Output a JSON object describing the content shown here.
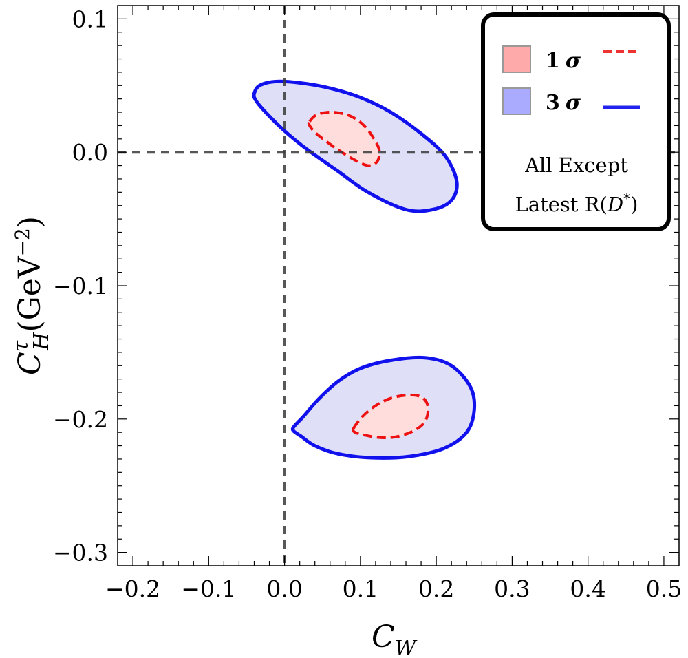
{
  "chart_data": {
    "type": "contour",
    "xlabel": "C",
    "xlabel_sub": "W",
    "ylabel": "C",
    "ylabel_sup": "τ",
    "ylabel_sub": "H",
    "ylabel_unit": "(GeV",
    "ylabel_unit_sup": "−2",
    "ylabel_unit_close": ")",
    "xlim": [
      -0.22,
      0.52
    ],
    "ylim": [
      -0.31,
      0.11
    ],
    "x_ticks": [
      -0.2,
      -0.1,
      0.0,
      0.1,
      0.2,
      0.3,
      0.4,
      0.5
    ],
    "x_tick_labels": [
      "−0.2",
      "−0.1",
      "0.0",
      "0.1",
      "0.2",
      "0.3",
      "0.4",
      "0.5"
    ],
    "y_ticks": [
      0.1,
      0.0,
      -0.1,
      -0.2,
      -0.3
    ],
    "y_tick_labels": [
      "0.1",
      "0.0",
      "−0.1",
      "−0.2",
      "−0.3"
    ],
    "reference_lines": {
      "x": 0.0,
      "y": 0.0,
      "style": "dashed"
    },
    "legend": {
      "placement": "top-right",
      "entries": [
        {
          "label": "1",
          "symbol": "σ",
          "fill": "#ffaaaa",
          "line_color": "#ee3333",
          "line_style": "dashed"
        },
        {
          "label": "3",
          "symbol": "σ",
          "fill": "#aaaaff",
          "line_color": "#2222ee",
          "line_style": "solid"
        }
      ],
      "note_line1": "All Except",
      "note_line2_prefix": "Latest R(",
      "note_line2_var": "D",
      "note_line2_sup": "*",
      "note_line2_suffix": ")"
    },
    "series": [
      {
        "name": "1σ",
        "stroke": "#ee1111",
        "fill": "#ffdddd",
        "dashed": true,
        "regions": [
          [
            [
              0.033,
              0.023
            ],
            [
              0.042,
              0.028
            ],
            [
              0.058,
              0.03
            ],
            [
              0.077,
              0.029
            ],
            [
              0.094,
              0.025
            ],
            [
              0.108,
              0.018
            ],
            [
              0.119,
              0.009
            ],
            [
              0.125,
              0.001
            ],
            [
              0.122,
              -0.007
            ],
            [
              0.11,
              -0.01
            ],
            [
              0.09,
              -0.005
            ],
            [
              0.07,
              0.002
            ],
            [
              0.053,
              0.009
            ],
            [
              0.04,
              0.015
            ],
            [
              0.033,
              0.02
            ]
          ],
          [
            [
              0.091,
              -0.207
            ],
            [
              0.103,
              -0.198
            ],
            [
              0.12,
              -0.19
            ],
            [
              0.142,
              -0.184
            ],
            [
              0.166,
              -0.182
            ],
            [
              0.182,
              -0.184
            ],
            [
              0.189,
              -0.191
            ],
            [
              0.186,
              -0.201
            ],
            [
              0.173,
              -0.208
            ],
            [
              0.15,
              -0.213
            ],
            [
              0.128,
              -0.214
            ],
            [
              0.105,
              -0.212
            ],
            [
              0.093,
              -0.21
            ]
          ]
        ]
      },
      {
        "name": "3σ",
        "stroke": "#1111ee",
        "fill": "#dfe0f8",
        "dashed": false,
        "regions": [
          [
            [
              -0.04,
              0.044
            ],
            [
              -0.033,
              0.05
            ],
            [
              -0.012,
              0.053
            ],
            [
              0.02,
              0.052
            ],
            [
              0.06,
              0.048
            ],
            [
              0.1,
              0.041
            ],
            [
              0.14,
              0.03
            ],
            [
              0.18,
              0.014
            ],
            [
              0.212,
              -0.003
            ],
            [
              0.227,
              -0.022
            ],
            [
              0.22,
              -0.036
            ],
            [
              0.195,
              -0.043
            ],
            [
              0.16,
              -0.043
            ],
            [
              0.11,
              -0.03
            ],
            [
              0.07,
              -0.014
            ],
            [
              0.03,
              0.002
            ],
            [
              0.0,
              0.016
            ],
            [
              -0.025,
              0.03
            ],
            [
              -0.038,
              0.039
            ]
          ],
          [
            [
              0.012,
              -0.206
            ],
            [
              0.025,
              -0.198
            ],
            [
              0.045,
              -0.185
            ],
            [
              0.07,
              -0.172
            ],
            [
              0.1,
              -0.162
            ],
            [
              0.14,
              -0.156
            ],
            [
              0.185,
              -0.154
            ],
            [
              0.22,
              -0.16
            ],
            [
              0.245,
              -0.176
            ],
            [
              0.25,
              -0.193
            ],
            [
              0.24,
              -0.21
            ],
            [
              0.21,
              -0.222
            ],
            [
              0.165,
              -0.228
            ],
            [
              0.115,
              -0.229
            ],
            [
              0.07,
              -0.226
            ],
            [
              0.04,
              -0.22
            ],
            [
              0.022,
              -0.213
            ],
            [
              0.012,
              -0.209
            ]
          ]
        ]
      }
    ]
  }
}
